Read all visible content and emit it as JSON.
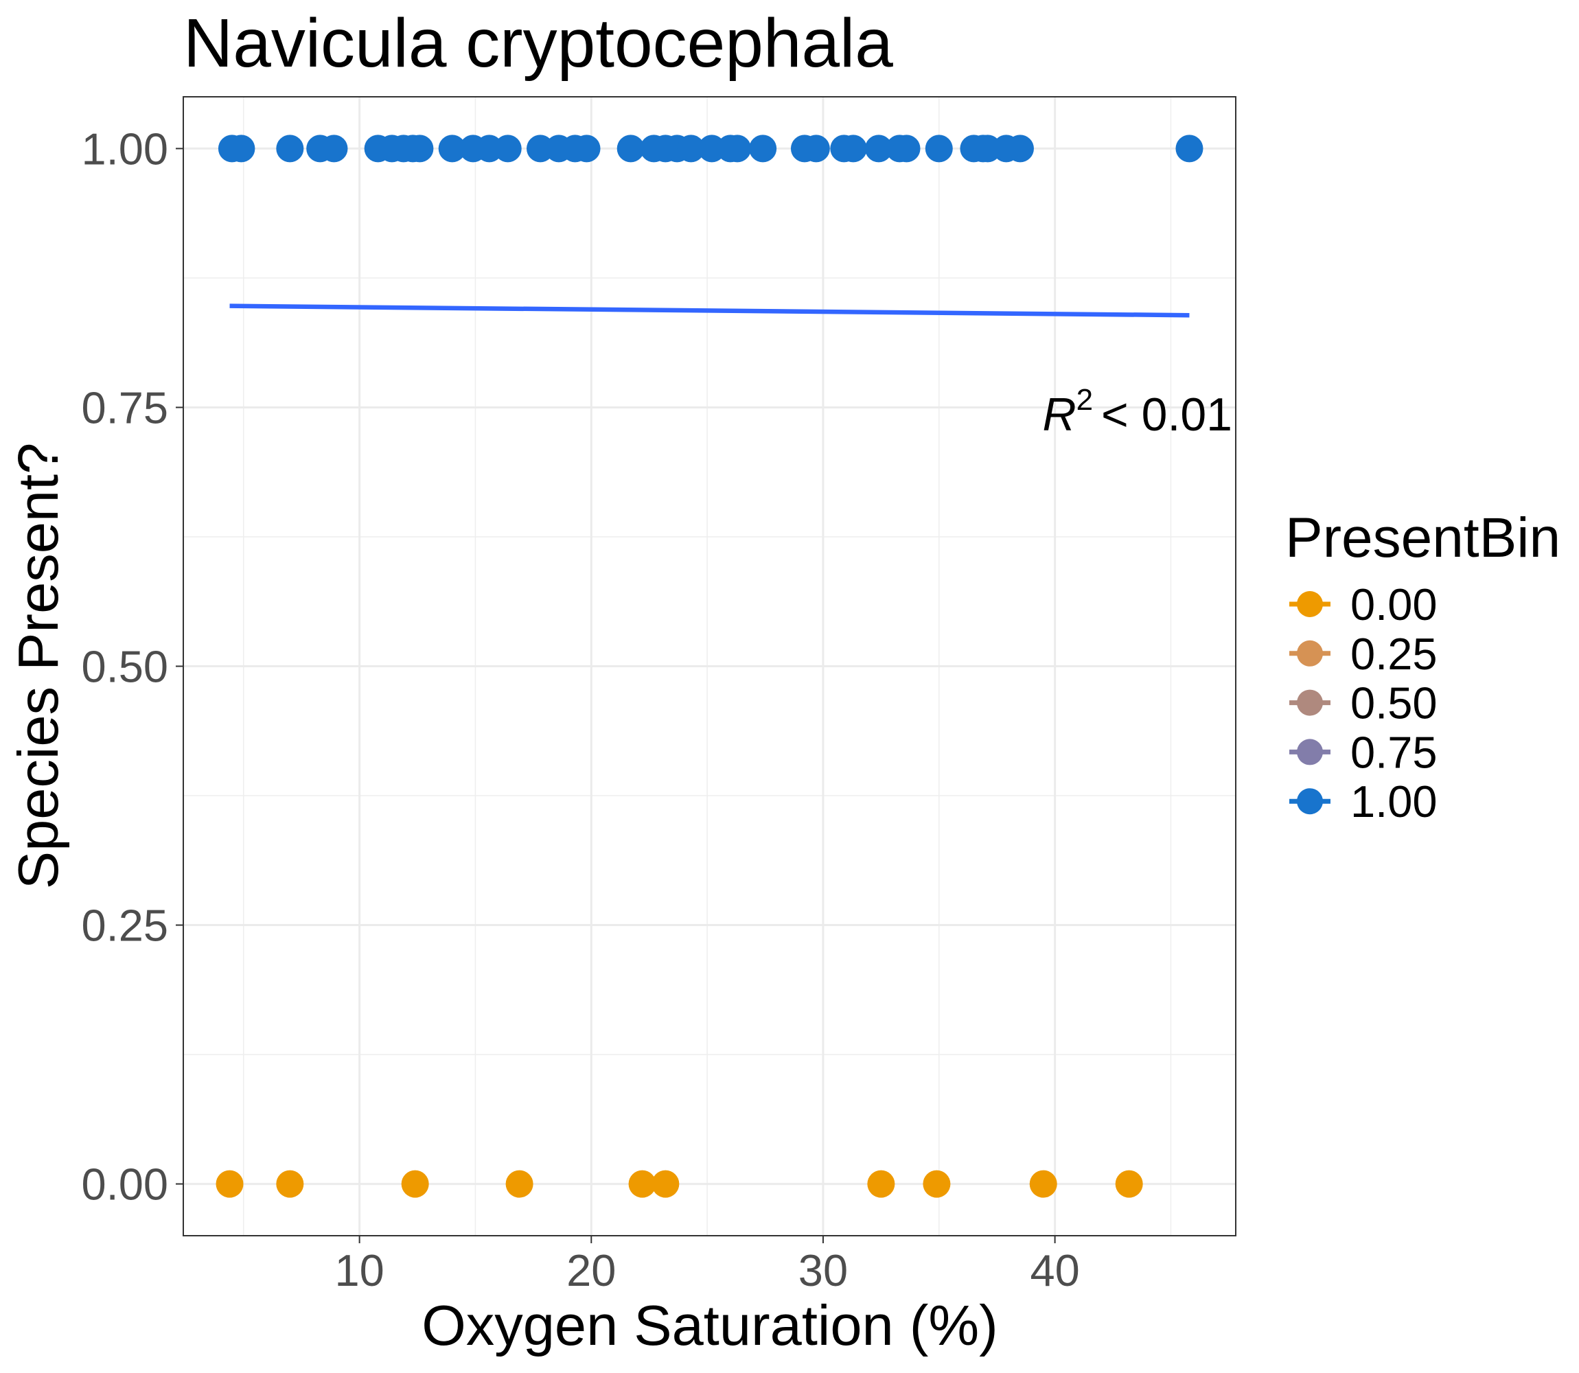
{
  "chart_data": {
    "type": "scatter",
    "title": "Navicula cryptocephala",
    "xlabel": "Oxygen Saturation (%)",
    "ylabel": "Species Present?",
    "xlim": [
      2.4,
      47.8
    ],
    "ylim": [
      -0.05,
      1.05
    ],
    "x_ticks": [
      10,
      20,
      30,
      40
    ],
    "x_tick_labels": [
      "10",
      "20",
      "30",
      "40"
    ],
    "y_ticks": [
      0,
      0.25,
      0.5,
      0.75,
      1
    ],
    "y_tick_labels": [
      "0.00",
      "0.25",
      "0.50",
      "0.75",
      "1.00"
    ],
    "grid": true,
    "series": [
      {
        "present_bin": 1,
        "color": "#1874CD",
        "x": [
          4.5,
          4.9,
          7.0,
          8.3,
          8.9,
          10.8,
          11.4,
          11.9,
          12.3,
          12.6,
          14.0,
          14.9,
          15.6,
          16.4,
          17.8,
          18.6,
          19.3,
          19.8,
          21.7,
          22.7,
          23.2,
          23.7,
          24.3,
          25.2,
          26.0,
          26.3,
          27.4,
          29.2,
          29.7,
          30.9,
          31.3,
          32.4,
          33.3,
          33.6,
          35.0,
          36.5,
          36.9,
          37.1,
          37.9,
          38.5,
          45.8
        ],
        "y": [
          1,
          1,
          1,
          1,
          1,
          1,
          1,
          1,
          1,
          1,
          1,
          1,
          1,
          1,
          1,
          1,
          1,
          1,
          1,
          1,
          1,
          1,
          1,
          1,
          1,
          1,
          1,
          1,
          1,
          1,
          1,
          1,
          1,
          1,
          1,
          1,
          1,
          1,
          1,
          1,
          1
        ]
      },
      {
        "present_bin": 0,
        "color": "#EE9A00",
        "x": [
          4.4,
          7.0,
          12.4,
          16.9,
          22.2,
          23.2,
          32.5,
          34.9,
          39.5,
          43.2
        ],
        "y": [
          0,
          0,
          0,
          0,
          0,
          0,
          0,
          0,
          0,
          0
        ]
      }
    ],
    "fit_line": {
      "color": "#3366FF",
      "x": [
        4.4,
        45.8
      ],
      "y": [
        0.848,
        0.839
      ]
    },
    "annotation": {
      "symbol": "R",
      "superscript": "2",
      "text": "< 0.01"
    },
    "legend": {
      "title": "PresentBin",
      "position": "right",
      "entries": [
        {
          "label": "0.00",
          "color": "#EE9A00"
        },
        {
          "label": "0.25",
          "color": "#D69254"
        },
        {
          "label": "0.50",
          "color": "#AF897E"
        },
        {
          "label": "0.75",
          "color": "#827DAA"
        },
        {
          "label": "1.00",
          "color": "#1874CD"
        }
      ]
    }
  }
}
